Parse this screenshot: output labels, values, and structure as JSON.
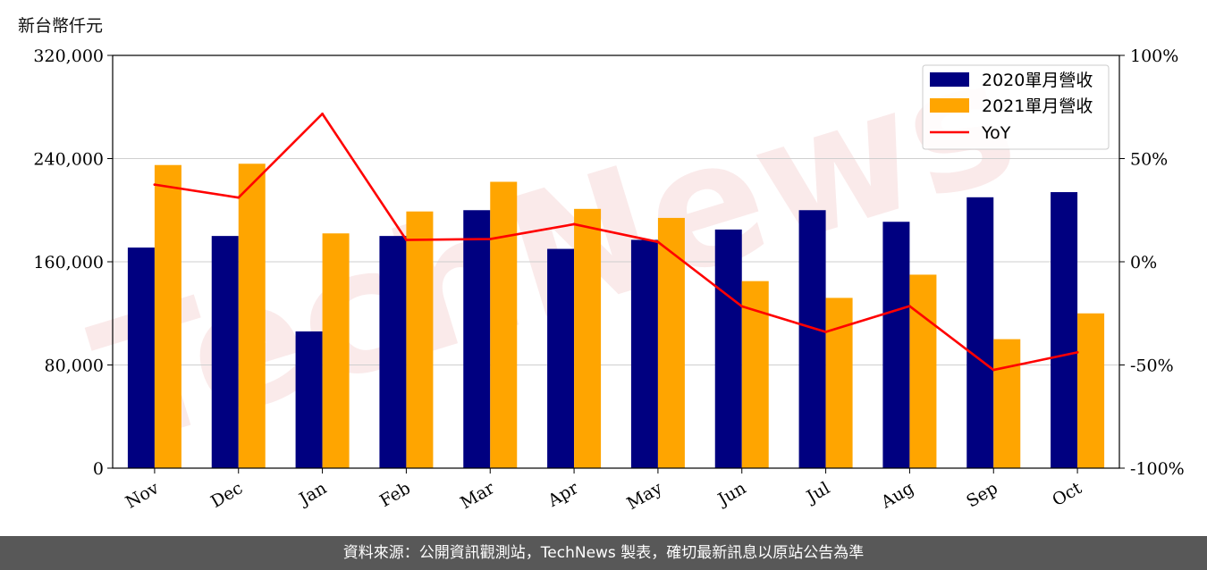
{
  "unit_label": "新台幣仟元",
  "footer_text": "資料來源：公開資訊觀測站，TechNews 製表，確切最新訊息以原站公告為準",
  "watermark": "TechNews",
  "colors": {
    "bar2020": "#000080",
    "bar2021": "#FFA500",
    "yoy": "#FF0000"
  },
  "chart_data": {
    "type": "bar",
    "categories": [
      "Nov",
      "Dec",
      "Jan",
      "Feb",
      "Mar",
      "Apr",
      "May",
      "Jun",
      "Jul",
      "Aug",
      "Sep",
      "Oct"
    ],
    "series": [
      {
        "name": "2020單月營收",
        "values": [
          171000,
          180000,
          106000,
          180000,
          200000,
          170000,
          177000,
          185000,
          200000,
          191000,
          210000,
          214000
        ]
      },
      {
        "name": "2021單月營收",
        "values": [
          235000,
          236000,
          182000,
          199000,
          222000,
          201000,
          194000,
          145000,
          132000,
          150000,
          100000,
          120000
        ]
      }
    ],
    "line_series": {
      "name": "YoY",
      "axis": "right",
      "values": [
        37.4,
        31.1,
        71.7,
        10.6,
        11.0,
        18.2,
        9.6,
        -21.6,
        -34.0,
        -21.5,
        -52.4,
        -43.9
      ]
    },
    "ylim": [
      0,
      320000
    ],
    "yticks": [
      "0",
      "80,000",
      "160,000",
      "240,000",
      "320,000"
    ],
    "y2lim": [
      -100,
      100
    ],
    "y2ticks": [
      "-100%",
      "-50%",
      "0%",
      "50%",
      "100%"
    ],
    "grid": "horizontal",
    "legend_position": "top-right"
  }
}
